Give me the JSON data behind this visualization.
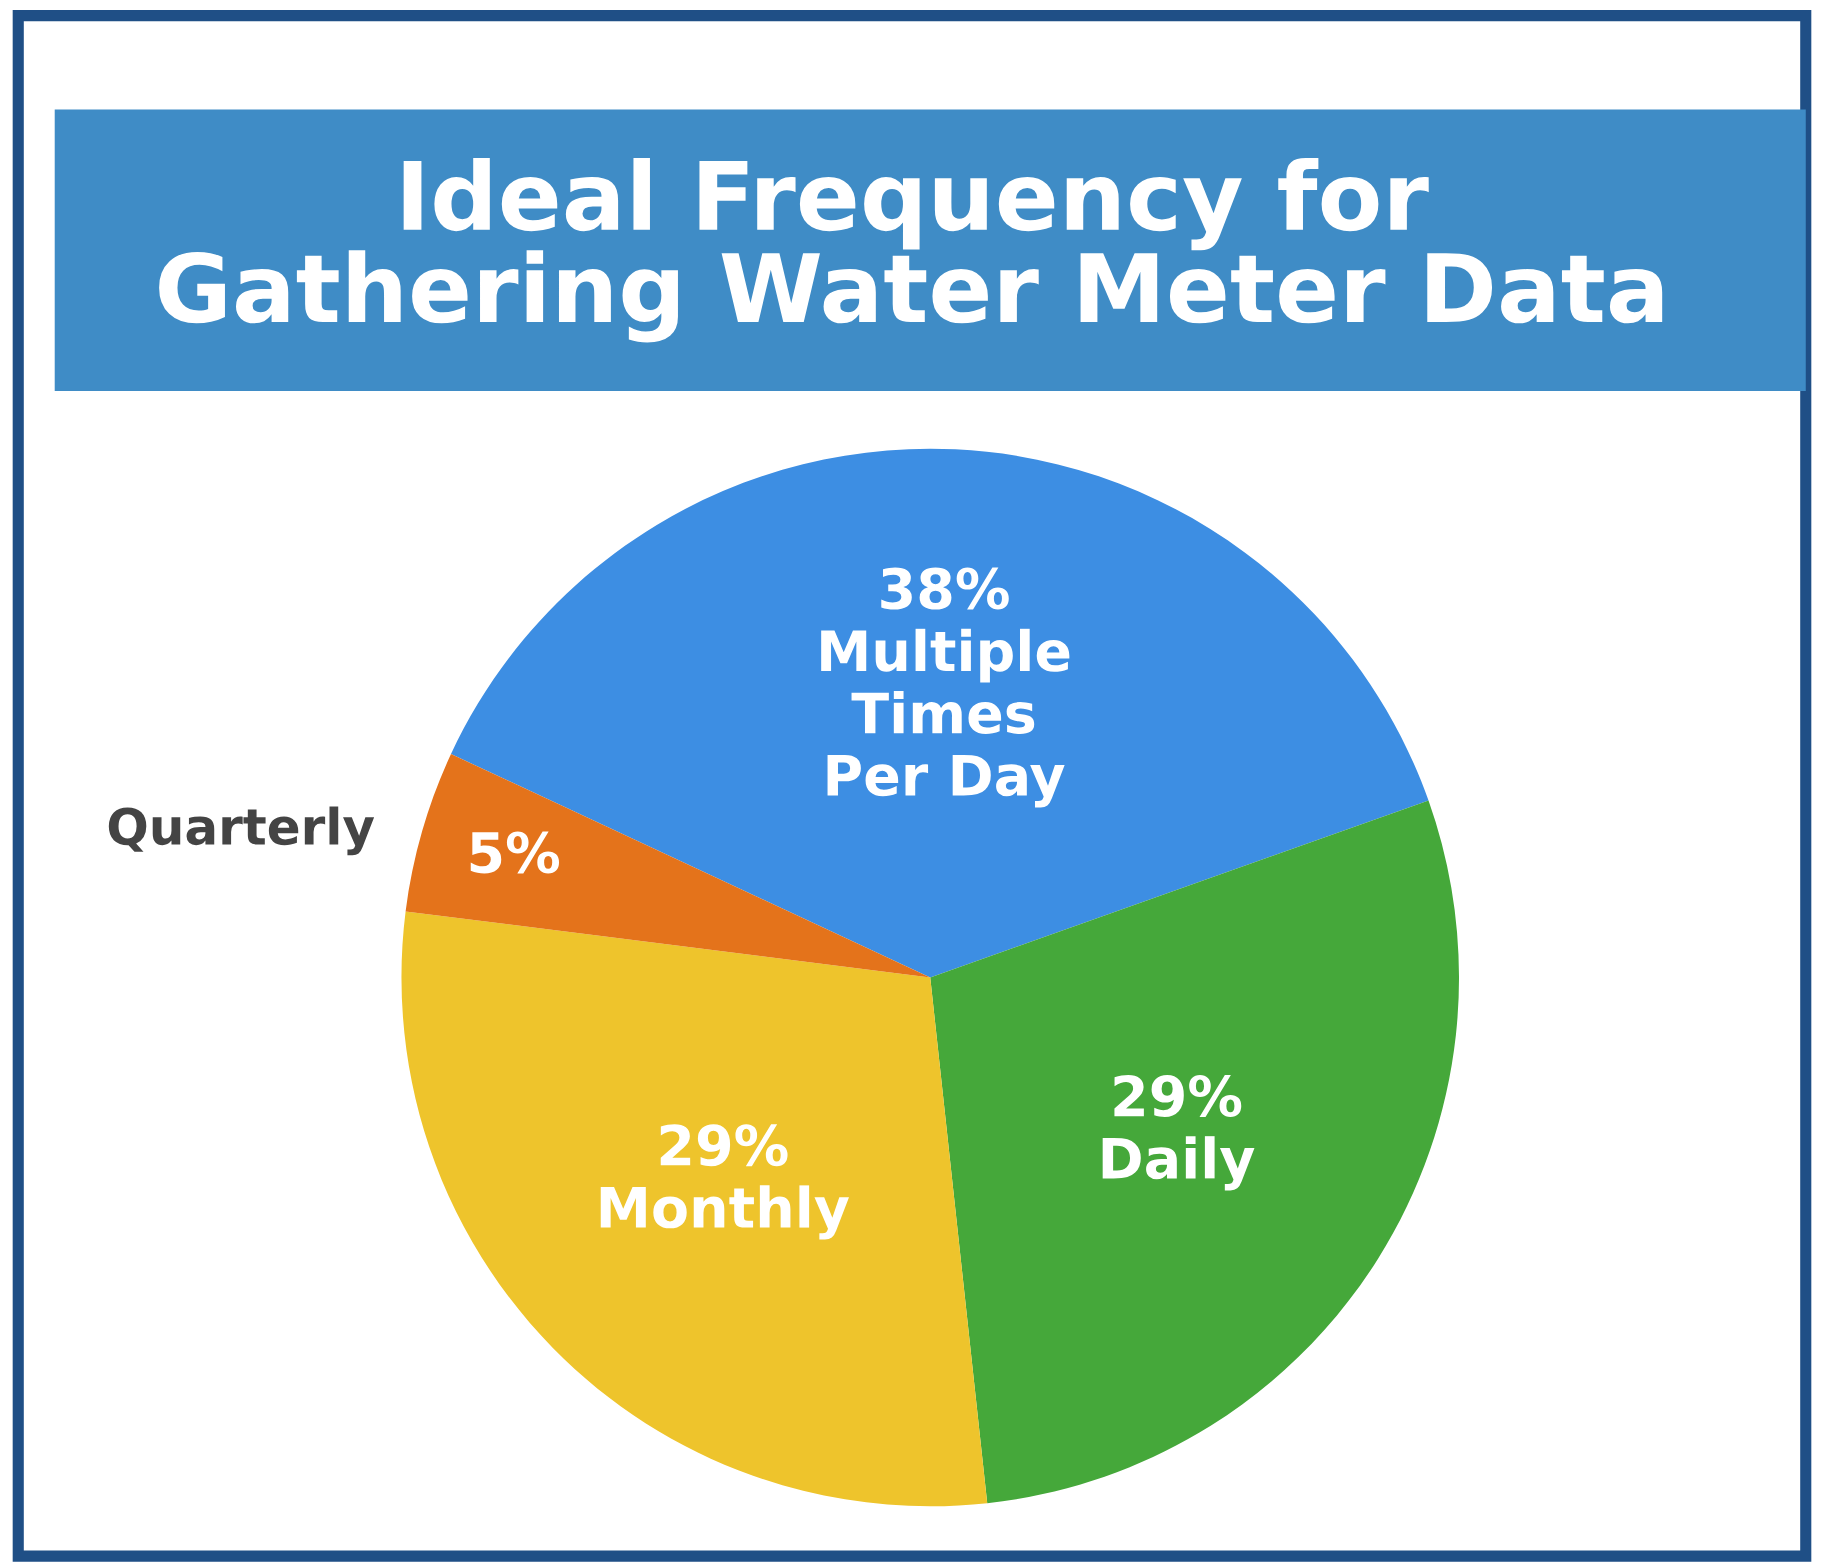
{
  "chart_data": {
    "type": "pie",
    "title": "Ideal Frequency for\nGathering Water Meter Data",
    "categories": [
      "Multiple\nTimes\nPer Day",
      "Daily",
      "Monthly",
      "Quarterly"
    ],
    "values": [
      38,
      29,
      29,
      5
    ],
    "value_labels": [
      "38%",
      "29%",
      "29%",
      "5%"
    ],
    "colors": [
      "#3d8ee3",
      "#45a83a",
      "#eec42c",
      "#e4731b"
    ]
  }
}
